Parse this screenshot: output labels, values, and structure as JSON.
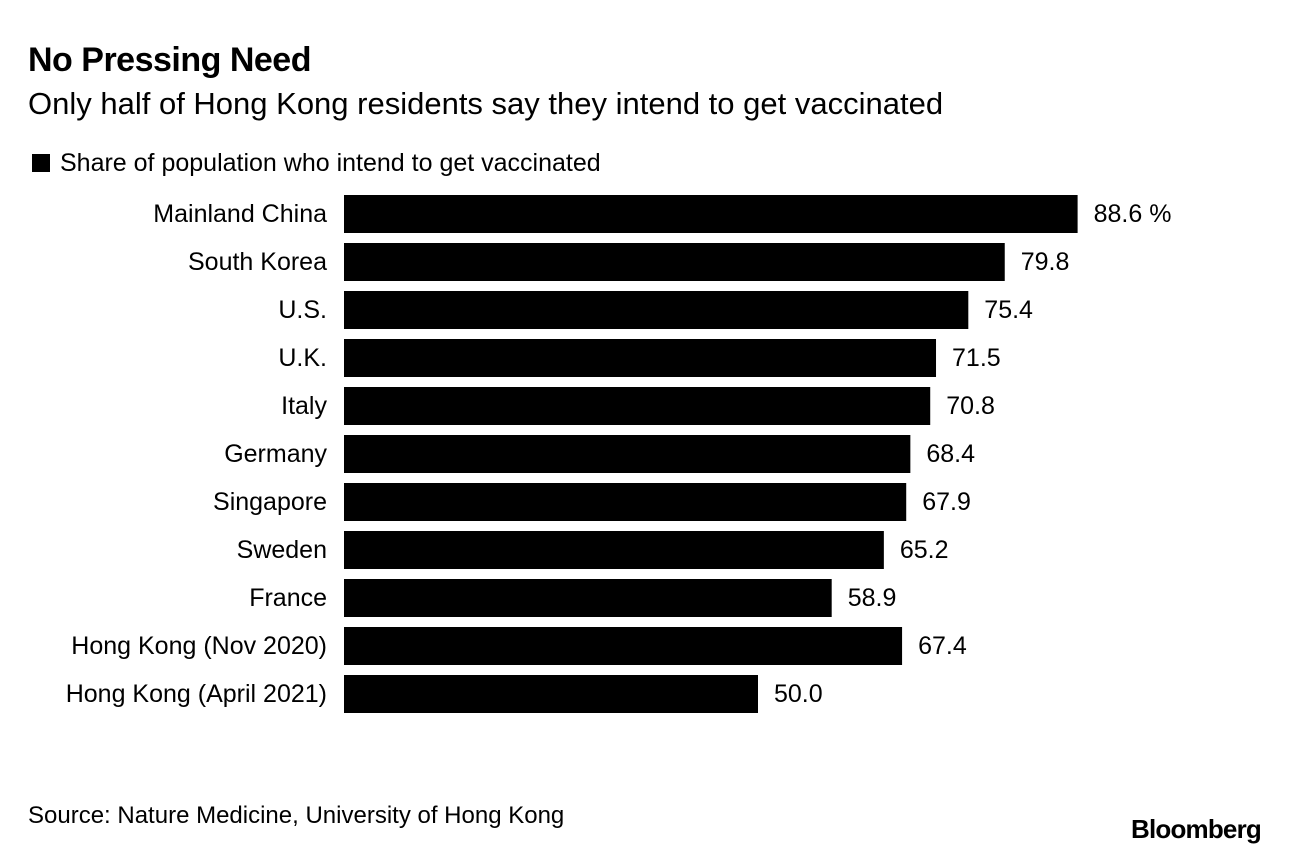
{
  "chart_data": {
    "type": "bar",
    "orientation": "horizontal",
    "title": "No Pressing Need",
    "subtitle": "Only half of Hong Kong residents say they intend to get vaccinated",
    "legend": [
      "Share of population who intend to get vaccinated"
    ],
    "categories": [
      "Mainland China",
      "South Korea",
      "U.S.",
      "U.K.",
      "Italy",
      "Germany",
      "Singapore",
      "Sweden",
      "France",
      "Hong Kong (Nov 2020)",
      "Hong Kong (April 2021)"
    ],
    "values": [
      88.6,
      79.8,
      75.4,
      71.5,
      70.8,
      68.4,
      67.9,
      65.2,
      58.9,
      67.4,
      50.0
    ],
    "value_labels": [
      "88.6 %",
      "79.8",
      "75.4",
      "71.5",
      "70.8",
      "68.4",
      "67.9",
      "65.2",
      "58.9",
      "67.4",
      "50.0"
    ],
    "unit": "%",
    "xlim": [
      0,
      100
    ],
    "bar_color": "#000000",
    "grid": false
  },
  "source": "Source: Nature Medicine, University of Hong Kong",
  "brand": "Bloomberg"
}
